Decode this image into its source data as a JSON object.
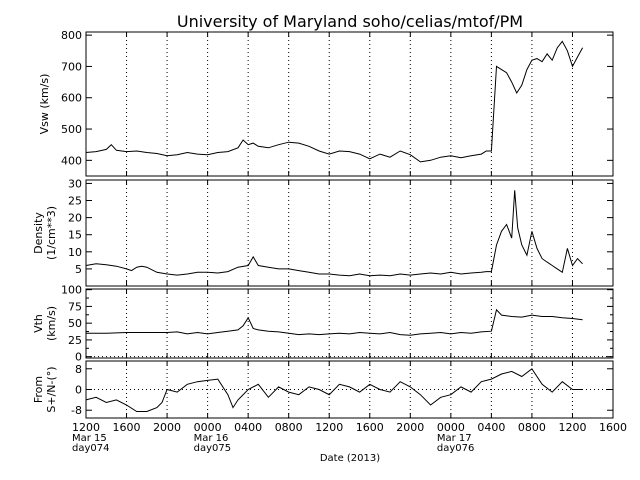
{
  "title": "University of Maryland  soho/celias/mtof/PM",
  "chart_data": {
    "type": "line",
    "xlabel": "Date (2013)",
    "x_unit": "hours since Mar 15 2013 00:00",
    "xlim": [
      12,
      64
    ],
    "x_ticks": [
      {
        "x": 12,
        "label": "1200"
      },
      {
        "x": 16,
        "label": "1600"
      },
      {
        "x": 20,
        "label": "2000"
      },
      {
        "x": 24,
        "label": "0000"
      },
      {
        "x": 28,
        "label": "0400"
      },
      {
        "x": 32,
        "label": "0800"
      },
      {
        "x": 36,
        "label": "1200"
      },
      {
        "x": 40,
        "label": "1600"
      },
      {
        "x": 44,
        "label": "2000"
      },
      {
        "x": 48,
        "label": "0000"
      },
      {
        "x": 52,
        "label": "0400"
      },
      {
        "x": 56,
        "label": "0800"
      },
      {
        "x": 60,
        "label": "1200"
      },
      {
        "x": 64,
        "label": "1600"
      }
    ],
    "date_labels": [
      {
        "x": 12,
        "line1": "Mar 15",
        "line2": "day074"
      },
      {
        "x": 24,
        "line1": "Mar 16",
        "line2": "day075"
      },
      {
        "x": 48,
        "line1": "Mar 17",
        "line2": "day076"
      }
    ],
    "grid": "vertical dotted",
    "panels": [
      {
        "ylabel": "Vsw (km/s)",
        "ylim": [
          350,
          810
        ],
        "yticks": [
          400,
          500,
          600,
          700,
          800
        ],
        "x": [
          12.0,
          13.0,
          14.0,
          14.5,
          15.0,
          16.0,
          17.0,
          18.0,
          19.0,
          20.0,
          21.0,
          22.0,
          23.0,
          24.0,
          25.0,
          26.0,
          27.0,
          27.5,
          28.0,
          28.5,
          29.0,
          30.0,
          31.0,
          32.0,
          33.0,
          34.0,
          35.0,
          36.0,
          37.0,
          38.0,
          39.0,
          40.0,
          41.0,
          42.0,
          43.0,
          44.0,
          45.0,
          46.0,
          47.0,
          48.0,
          49.0,
          50.0,
          51.0,
          51.5,
          52.0,
          52.5,
          53.0,
          53.5,
          54.0,
          54.5,
          55.0,
          55.5,
          56.0,
          56.5,
          57.0,
          57.5,
          58.0,
          58.5,
          59.0,
          59.5,
          60.0,
          60.5,
          61.0
        ],
        "y": [
          425,
          428,
          435,
          450,
          432,
          428,
          430,
          425,
          422,
          415,
          418,
          425,
          420,
          418,
          425,
          428,
          440,
          465,
          450,
          455,
          445,
          440,
          450,
          458,
          455,
          445,
          430,
          420,
          430,
          428,
          420,
          405,
          420,
          410,
          430,
          418,
          395,
          400,
          410,
          415,
          408,
          415,
          420,
          430,
          430,
          700,
          690,
          680,
          650,
          615,
          640,
          690,
          720,
          725,
          715,
          740,
          720,
          760,
          780,
          750,
          700,
          730,
          760
        ]
      },
      {
        "ylabel": "Density (1/cm**3)",
        "ylim": [
          0,
          31
        ],
        "yticks": [
          5,
          10,
          15,
          20,
          25,
          30
        ],
        "x": [
          12.0,
          13.0,
          14.0,
          15.0,
          16.0,
          16.5,
          17.0,
          17.5,
          18.0,
          19.0,
          20.0,
          21.0,
          22.0,
          23.0,
          24.0,
          25.0,
          26.0,
          27.0,
          28.0,
          28.5,
          29.0,
          30.0,
          31.0,
          32.0,
          33.0,
          34.0,
          35.0,
          36.0,
          37.0,
          38.0,
          39.0,
          40.0,
          41.0,
          42.0,
          43.0,
          44.0,
          45.0,
          46.0,
          47.0,
          48.0,
          49.0,
          50.0,
          51.0,
          51.5,
          52.0,
          52.5,
          53.0,
          53.5,
          54.0,
          54.3,
          54.6,
          55.0,
          55.5,
          56.0,
          56.5,
          57.0,
          57.5,
          58.0,
          58.5,
          59.0,
          59.5,
          60.0,
          60.5,
          61.0
        ],
        "y": [
          6.0,
          6.5,
          6.2,
          5.8,
          5.0,
          4.5,
          5.5,
          5.8,
          5.5,
          4.0,
          3.5,
          3.2,
          3.5,
          4.0,
          4.0,
          3.8,
          4.2,
          5.5,
          6.0,
          8.5,
          6.0,
          5.5,
          5.0,
          5.0,
          4.5,
          4.0,
          3.5,
          3.5,
          3.2,
          3.0,
          3.5,
          3.0,
          3.2,
          3.0,
          3.5,
          3.2,
          3.5,
          3.8,
          3.5,
          4.0,
          3.5,
          3.8,
          4.0,
          4.2,
          4.2,
          12.0,
          16.0,
          18.0,
          14.0,
          28.0,
          17.0,
          12.0,
          9.0,
          16.0,
          11.0,
          8.0,
          7.0,
          6.0,
          5.0,
          4.0,
          11.0,
          6.0,
          8.0,
          6.5
        ]
      },
      {
        "ylabel": "Vth (km/s)",
        "ylim": [
          -2,
          101
        ],
        "yticks": [
          0,
          25,
          50,
          75,
          100
        ],
        "minor_yticks": [
          12.5,
          37.5,
          62.5,
          87.5
        ],
        "x": [
          12.0,
          14.0,
          16.0,
          18.0,
          20.0,
          21.0,
          22.0,
          23.0,
          24.0,
          25.0,
          26.0,
          27.0,
          27.5,
          28.0,
          28.5,
          29.0,
          30.0,
          31.0,
          32.0,
          33.0,
          34.0,
          35.0,
          36.0,
          37.0,
          38.0,
          39.0,
          40.0,
          41.0,
          42.0,
          43.0,
          44.0,
          45.0,
          46.0,
          47.0,
          48.0,
          49.0,
          50.0,
          51.0,
          52.0,
          52.5,
          53.0,
          54.0,
          55.0,
          56.0,
          57.0,
          58.0,
          59.0,
          60.0,
          61.0
        ],
        "y": [
          35,
          35,
          36,
          36,
          36,
          37,
          34,
          36,
          34,
          36,
          38,
          40,
          46,
          58,
          42,
          40,
          38,
          37,
          35,
          33,
          34,
          33,
          34,
          35,
          34,
          36,
          35,
          34,
          36,
          33,
          32,
          34,
          35,
          36,
          34,
          36,
          35,
          37,
          38,
          70,
          62,
          60,
          59,
          62,
          60,
          60,
          58,
          57,
          55
        ]
      },
      {
        "ylabel": "From S+/N-(°)",
        "ylim": [
          -11,
          11
        ],
        "yticks": [
          -8,
          0,
          8
        ],
        "x": [
          12.0,
          13.0,
          14.0,
          15.0,
          16.0,
          17.0,
          18.0,
          19.0,
          19.5,
          20.0,
          21.0,
          22.0,
          23.0,
          24.0,
          25.0,
          26.0,
          26.5,
          27.0,
          28.0,
          29.0,
          30.0,
          31.0,
          32.0,
          33.0,
          34.0,
          35.0,
          36.0,
          37.0,
          38.0,
          39.0,
          40.0,
          41.0,
          42.0,
          43.0,
          44.0,
          45.0,
          46.0,
          47.0,
          48.0,
          49.0,
          50.0,
          51.0,
          52.0,
          53.0,
          54.0,
          55.0,
          56.0,
          57.0,
          58.0,
          59.0,
          60.0,
          61.0
        ],
        "y": [
          -4.0,
          -3.0,
          -5.0,
          -4.0,
          -6.0,
          -8.5,
          -8.5,
          -7.0,
          -5.0,
          0.0,
          -1.0,
          2.0,
          3.0,
          3.5,
          4.0,
          -2.0,
          -7.0,
          -4.0,
          0.0,
          2.0,
          -3.0,
          1.0,
          -1.0,
          -2.0,
          1.0,
          0.0,
          -2.0,
          2.0,
          1.0,
          -1.0,
          2.0,
          0.0,
          -1.0,
          3.0,
          1.0,
          -2.0,
          -6.0,
          -3.0,
          -2.0,
          1.0,
          -1.0,
          3.0,
          4.0,
          6.0,
          7.0,
          5.0,
          8.0,
          2.0,
          -1.0,
          3.0,
          0.0,
          0.0
        ]
      }
    ]
  }
}
